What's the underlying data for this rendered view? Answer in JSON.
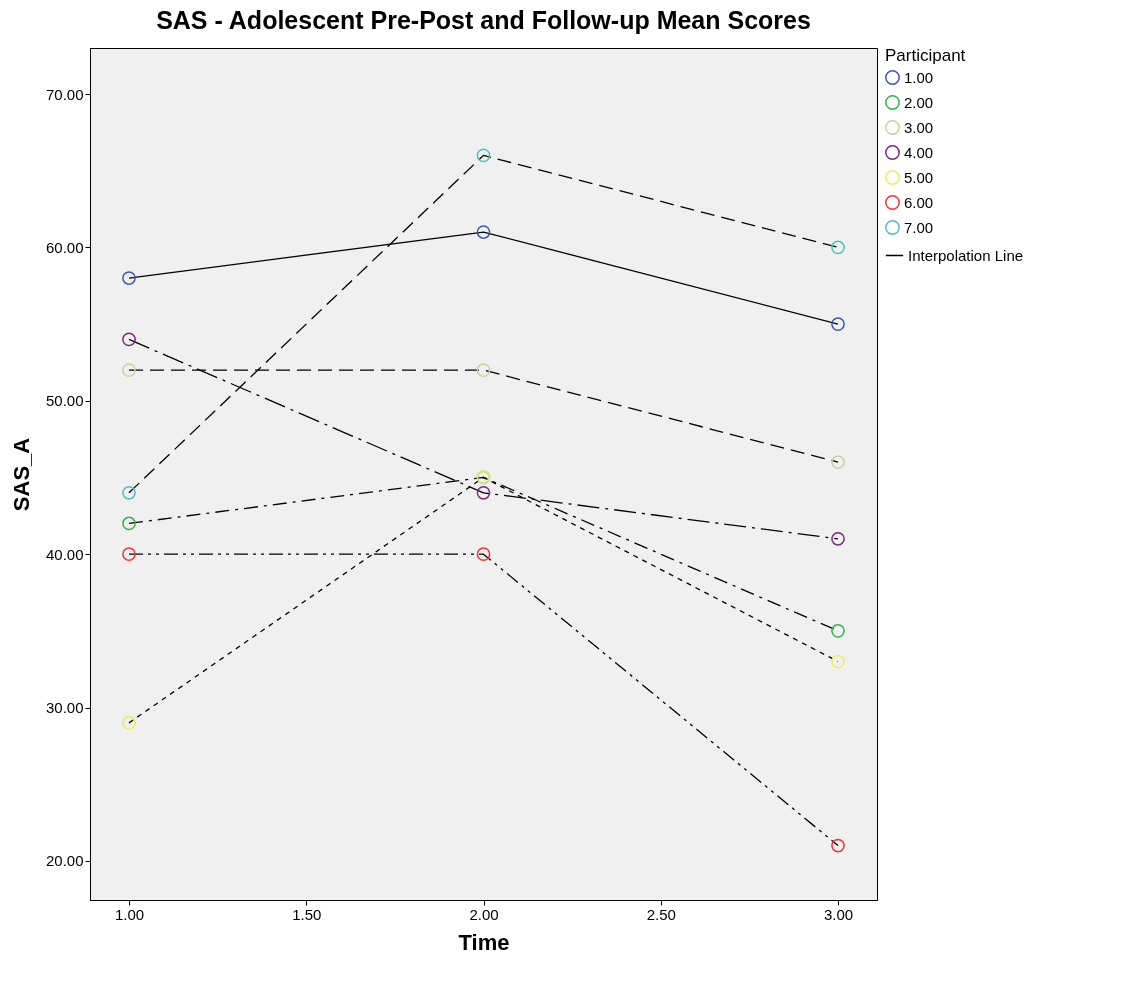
{
  "chart_data": {
    "type": "line",
    "title": "SAS - Adolescent Pre-Post and Follow-up Mean Scores",
    "xlabel": "Time",
    "ylabel": "SAS_A",
    "legend_title": "Participant",
    "legend": "right",
    "marker": "circle",
    "grid": false,
    "x": [
      1,
      2,
      3
    ],
    "series": [
      {
        "name": "1.00",
        "color": "#3e58ac",
        "line_style": "solid",
        "values": [
          58,
          61,
          55
        ]
      },
      {
        "name": "2.00",
        "color": "#2eb848",
        "line_style": "dashdot",
        "values": [
          42,
          45,
          35
        ]
      },
      {
        "name": "3.00",
        "color": "#d3ce97",
        "line_style": "dashed",
        "values": [
          52,
          52,
          46
        ]
      },
      {
        "name": "4.00",
        "color": "#7c287d",
        "line_style": "longdashdot",
        "values": [
          54,
          44,
          41
        ]
      },
      {
        "name": "5.00",
        "color": "#f0ec50",
        "line_style": "dotted",
        "values": [
          29,
          45,
          33
        ]
      },
      {
        "name": "6.00",
        "color": "#ef3338",
        "line_style": "dashdotdot",
        "values": [
          40,
          40,
          21
        ]
      },
      {
        "name": "7.00",
        "color": "#48c2c5",
        "line_style": "dashed",
        "values": [
          44,
          66,
          60
        ]
      }
    ],
    "annotations": [
      "Interpolation Line"
    ],
    "xlim": [
      0.89,
      3.11
    ],
    "ylim": [
      17.45,
      73
    ],
    "xticks": [
      {
        "value": 1,
        "label": "1.00"
      },
      {
        "value": 1.5,
        "label": "1.50"
      },
      {
        "value": 2,
        "label": "2.00"
      },
      {
        "value": 2.5,
        "label": "2.50"
      },
      {
        "value": 3,
        "label": "3.00"
      }
    ],
    "yticks": [
      {
        "value": 20,
        "label": "20.00"
      },
      {
        "value": 30,
        "label": "30.00"
      },
      {
        "value": 40,
        "label": "40.00"
      },
      {
        "value": 50,
        "label": "50.00"
      },
      {
        "value": 60,
        "label": "60.00"
      },
      {
        "value": 70,
        "label": "70.00"
      }
    ]
  }
}
